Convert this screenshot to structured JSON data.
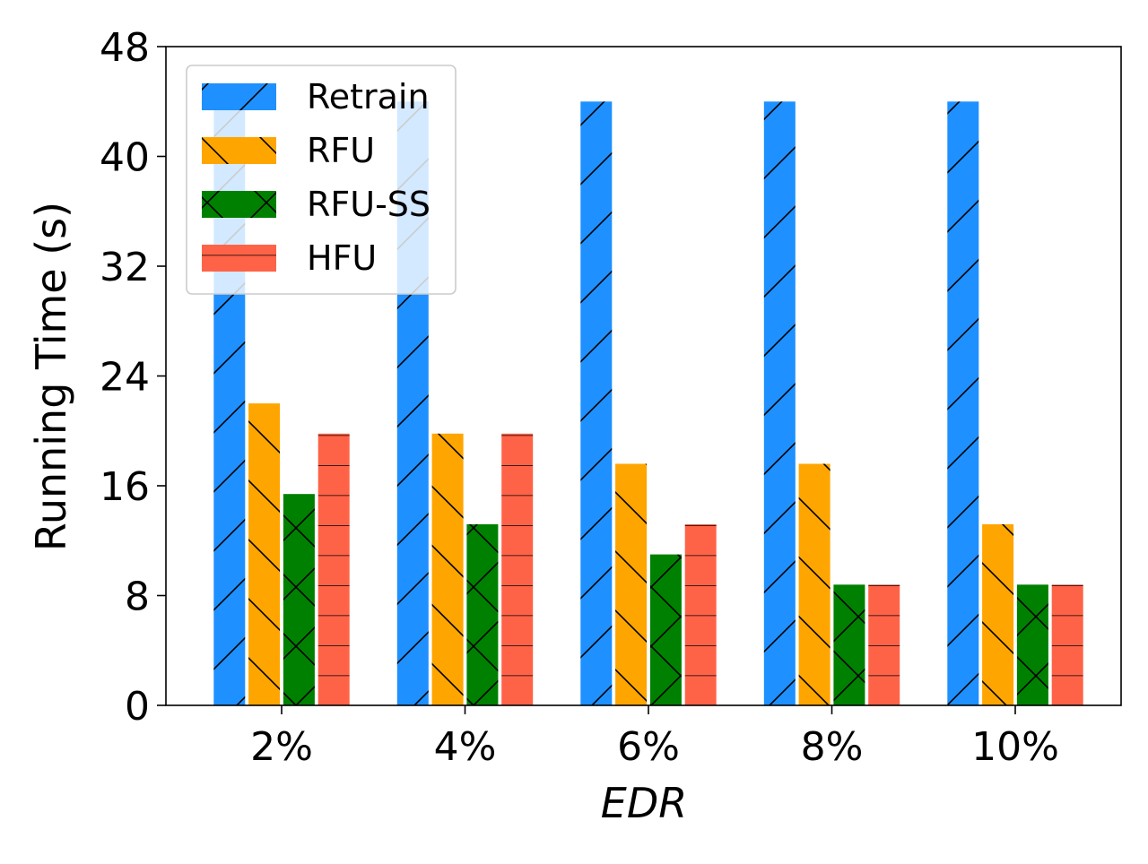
{
  "chart_data": {
    "type": "bar",
    "title": "",
    "xlabel": "EDR",
    "ylabel": "Running Time (s)",
    "categories": [
      "2%",
      "4%",
      "6%",
      "8%",
      "10%"
    ],
    "ylim": [
      0,
      48
    ],
    "yticks": [
      "0",
      "8",
      "16",
      "24",
      "32",
      "40",
      "48"
    ],
    "grid": false,
    "legend_position": "top-left",
    "series": [
      {
        "name": "Retrain",
        "color": "#1e90ff",
        "hatch": "forward-diagonal",
        "values": [
          44,
          44,
          44,
          44,
          44
        ]
      },
      {
        "name": "RFU",
        "color": "#ffa500",
        "hatch": "back-diagonal",
        "values": [
          22,
          19.8,
          17.6,
          17.6,
          13.2
        ]
      },
      {
        "name": "RFU-SS",
        "color": "#008000",
        "hatch": "cross",
        "values": [
          15.4,
          13.2,
          11,
          8.8,
          8.8
        ]
      },
      {
        "name": "HFU",
        "color": "#ff6347",
        "hatch": "horizontal",
        "values": [
          19.8,
          19.8,
          13.2,
          8.8,
          8.8
        ]
      }
    ]
  }
}
